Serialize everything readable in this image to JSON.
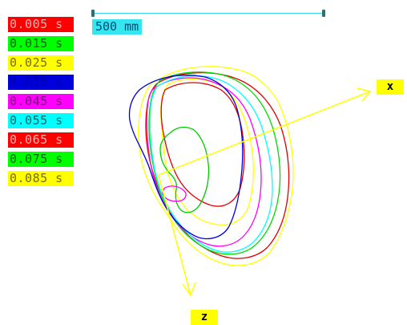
{
  "legend": [
    {
      "label": "0.005 s",
      "bg": "#ff0000",
      "fg": "#ffb0b0"
    },
    {
      "label": "0.015 s",
      "bg": "#00ff00",
      "fg": "#006400"
    },
    {
      "label": "0.025 s",
      "bg": "#ffff00",
      "fg": "#7a6a00"
    },
    {
      "label": "0.035 s",
      "bg": "#0000dd",
      "fg": "#0000aa"
    },
    {
      "label": "0.045 s",
      "bg": "#ff00ff",
      "fg": "#7a007a"
    },
    {
      "label": "0.055 s",
      "bg": "#00ffff",
      "fg": "#006a6a"
    },
    {
      "label": "0.065 s",
      "bg": "#ff0000",
      "fg": "#ffb0b0"
    },
    {
      "label": "0.075 s",
      "bg": "#00ff00",
      "fg": "#006400"
    },
    {
      "label": "0.085 s",
      "bg": "#ffff00",
      "fg": "#7a6a00"
    }
  ],
  "scale": {
    "label": "500 mm"
  },
  "axes": {
    "x_label": "x",
    "z_label": "z"
  }
}
